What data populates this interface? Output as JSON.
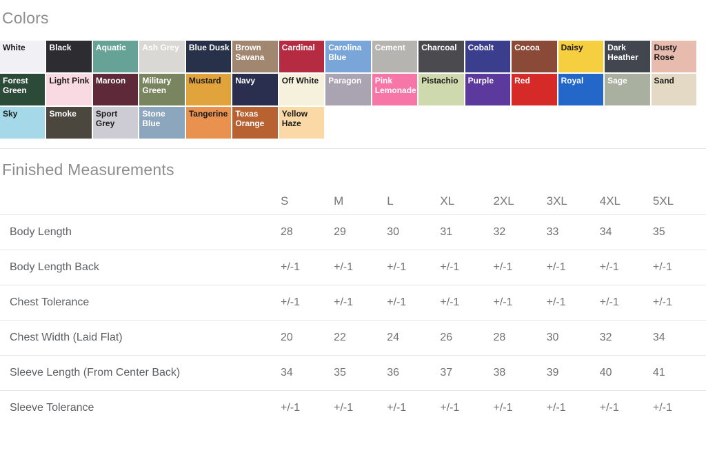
{
  "colors_section": {
    "title": "Colors",
    "swatches": [
      {
        "label": "White",
        "bg": "#f1f0f5",
        "fg": "#1a1a1a"
      },
      {
        "label": "Black",
        "bg": "#2d2c31",
        "fg": "#ffffff"
      },
      {
        "label": "Aquatic",
        "bg": "#66a396",
        "fg": "#ffffff"
      },
      {
        "label": "Ash Grey",
        "bg": "#d9d8d4",
        "fg": "#ffffff"
      },
      {
        "label": "Blue Dusk",
        "bg": "#273149",
        "fg": "#ffffff"
      },
      {
        "label": "Brown Savana",
        "bg": "#a18770",
        "fg": "#ffffff"
      },
      {
        "label": "Cardinal",
        "bg": "#b52b42",
        "fg": "#ffffff"
      },
      {
        "label": "Carolina Blue",
        "bg": "#7aa5d9",
        "fg": "#ffffff"
      },
      {
        "label": "Cement",
        "bg": "#b5b4b0",
        "fg": "#ffffff"
      },
      {
        "label": "Charcoal",
        "bg": "#4b4a4f",
        "fg": "#ffffff"
      },
      {
        "label": "Cobalt",
        "bg": "#3b3e8d",
        "fg": "#ffffff"
      },
      {
        "label": "Cocoa",
        "bg": "#8b4937",
        "fg": "#ffffff"
      },
      {
        "label": "Daisy",
        "bg": "#f6cf41",
        "fg": "#1a1a1a"
      },
      {
        "label": "Dark Heather",
        "bg": "#41464f",
        "fg": "#ffffff"
      },
      {
        "label": "Dusty Rose",
        "bg": "#e7bcae",
        "fg": "#1a1a1a"
      },
      {
        "label": "Forest Green",
        "bg": "#2b4a38",
        "fg": "#ffffff"
      },
      {
        "label": "Light Pink",
        "bg": "#f9d9e2",
        "fg": "#1a1a1a"
      },
      {
        "label": "Maroon",
        "bg": "#5e2a39",
        "fg": "#ffffff"
      },
      {
        "label": "Military Green",
        "bg": "#78855e",
        "fg": "#ffffff"
      },
      {
        "label": "Mustard",
        "bg": "#e1a33c",
        "fg": "#1a1a1a"
      },
      {
        "label": "Navy",
        "bg": "#2b2f4f",
        "fg": "#ffffff"
      },
      {
        "label": "Off White",
        "bg": "#f6f1dd",
        "fg": "#1a1a1a"
      },
      {
        "label": "Paragon",
        "bg": "#aaa4b2",
        "fg": "#ffffff"
      },
      {
        "label": "Pink Lemonade",
        "bg": "#f776a8",
        "fg": "#ffffff"
      },
      {
        "label": "Pistachio",
        "bg": "#cfd9ae",
        "fg": "#1a1a1a"
      },
      {
        "label": "Purple",
        "bg": "#5c3a9d",
        "fg": "#ffffff"
      },
      {
        "label": "Red",
        "bg": "#d52a28",
        "fg": "#ffffff"
      },
      {
        "label": "Royal",
        "bg": "#2367c9",
        "fg": "#ffffff"
      },
      {
        "label": "Sage",
        "bg": "#a9b0a0",
        "fg": "#ffffff"
      },
      {
        "label": "Sand",
        "bg": "#e4d9c4",
        "fg": "#1a1a1a"
      },
      {
        "label": "Sky",
        "bg": "#a5d9e9",
        "fg": "#1a1a1a"
      },
      {
        "label": "Smoke",
        "bg": "#4b463e",
        "fg": "#ffffff"
      },
      {
        "label": "Sport Grey",
        "bg": "#cdccd4",
        "fg": "#1a1a1a"
      },
      {
        "label": "Stone Blue",
        "bg": "#8ba6bd",
        "fg": "#ffffff"
      },
      {
        "label": "Tangerine",
        "bg": "#e9914f",
        "fg": "#1a1a1a"
      },
      {
        "label": "Texas Orange",
        "bg": "#b96231",
        "fg": "#ffffff"
      },
      {
        "label": "Yellow Haze",
        "bg": "#fad9a6",
        "fg": "#1a1a1a"
      }
    ]
  },
  "measurements_section": {
    "title": "Finished Measurements",
    "columns": [
      "S",
      "M",
      "L",
      "XL",
      "2XL",
      "3XL",
      "4XL",
      "5XL"
    ],
    "rows": [
      {
        "label": "Body Length",
        "values": [
          "28",
          "29",
          "30",
          "31",
          "32",
          "33",
          "34",
          "35"
        ]
      },
      {
        "label": "Body Length Back",
        "values": [
          "+/-1",
          "+/-1",
          "+/-1",
          "+/-1",
          "+/-1",
          "+/-1",
          "+/-1",
          "+/-1"
        ]
      },
      {
        "label": "Chest Tolerance",
        "values": [
          "+/-1",
          "+/-1",
          "+/-1",
          "+/-1",
          "+/-1",
          "+/-1",
          "+/-1",
          "+/-1"
        ]
      },
      {
        "label": "Chest Width (Laid Flat)",
        "values": [
          "20",
          "22",
          "24",
          "26",
          "28",
          "30",
          "32",
          "34"
        ]
      },
      {
        "label": "Sleeve Length (From Center Back)",
        "values": [
          "34",
          "35",
          "36",
          "37",
          "38",
          "39",
          "40",
          "41"
        ]
      },
      {
        "label": "Sleeve Tolerance",
        "values": [
          "+/-1",
          "+/-1",
          "+/-1",
          "+/-1",
          "+/-1",
          "+/-1",
          "+/-1",
          "+/-1"
        ]
      }
    ]
  }
}
